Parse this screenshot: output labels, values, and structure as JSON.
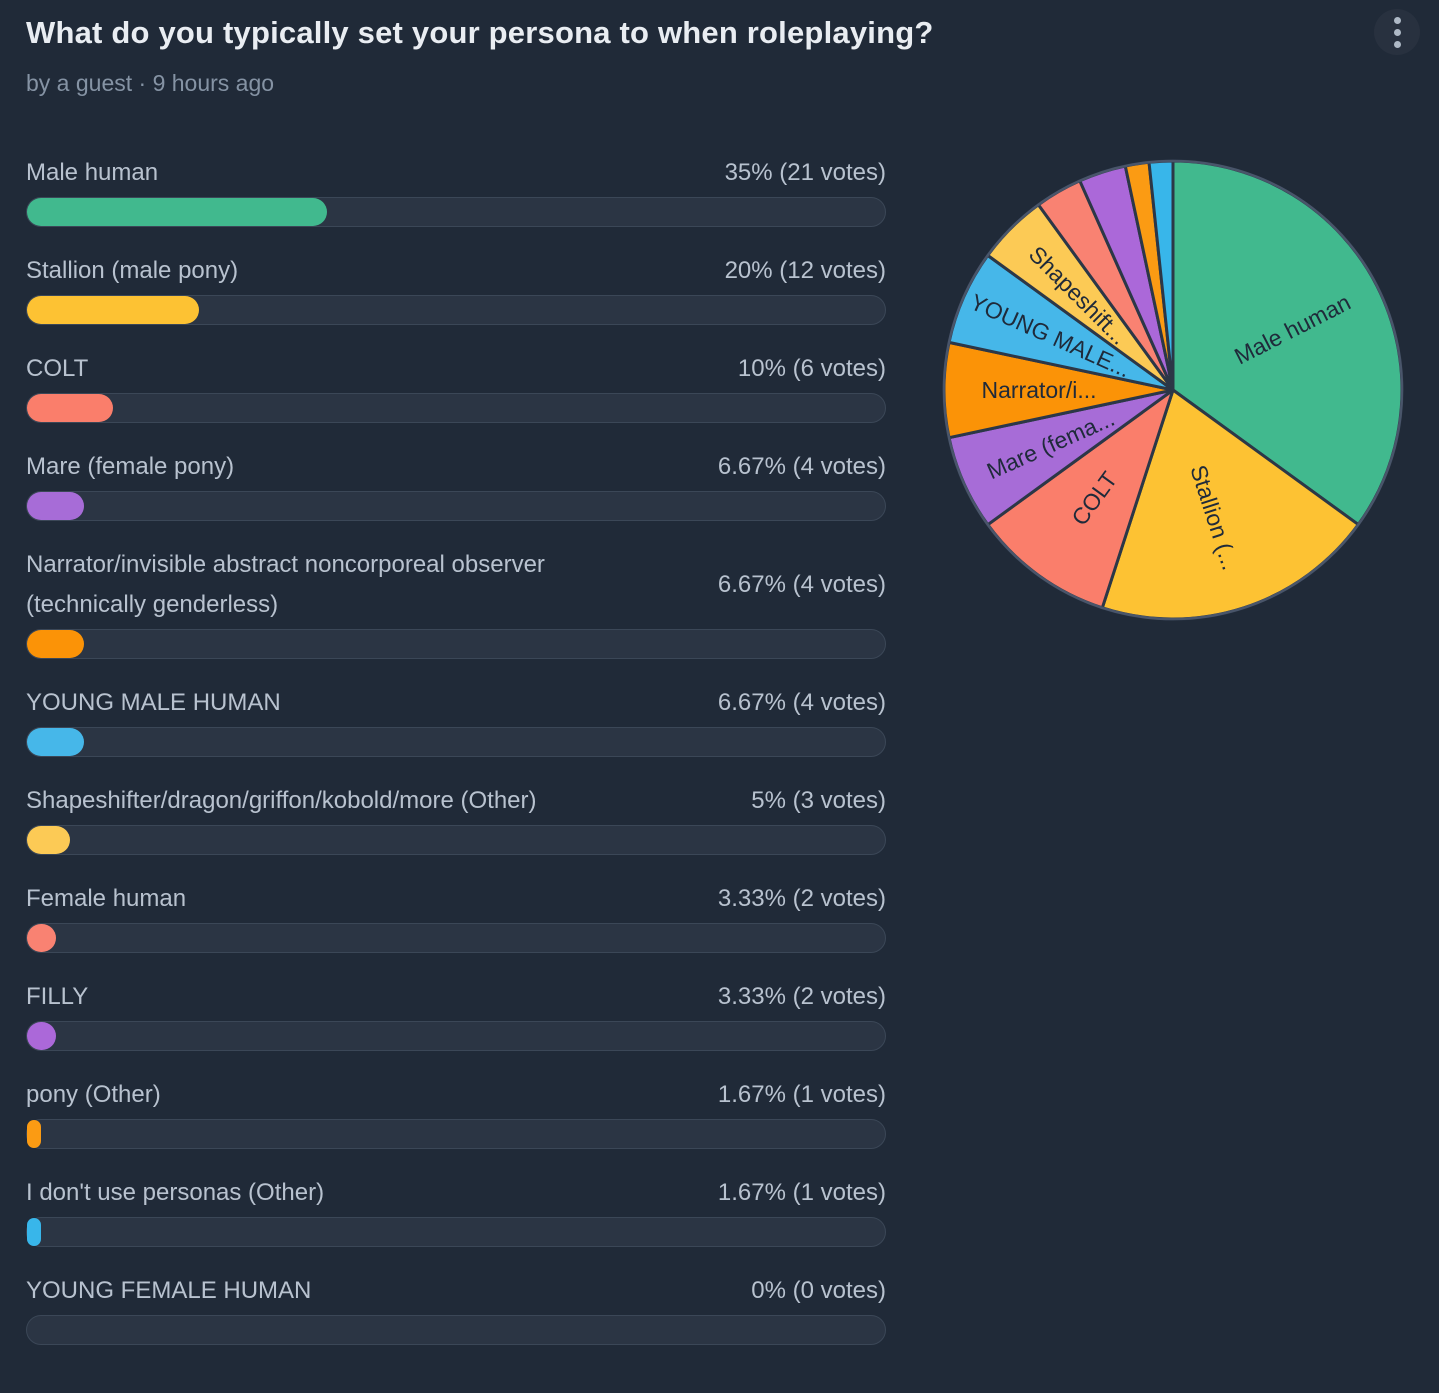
{
  "header": {
    "title": "What do you typically set your persona to when roleplaying?",
    "byline": "by a guest · 9 hours ago"
  },
  "colors": {
    "background": "#202a38",
    "track": "#2b3544",
    "track_border": "#3b4757",
    "label_text": "#b8c2cf",
    "title_text": "#e9edf2",
    "byline_text": "#8593a4",
    "pie_label_text": "#1f2a3a",
    "slice_stroke": "#2c3747"
  },
  "chart_data": {
    "type": "pie",
    "title": "What do you typically set your persona to when roleplaying?",
    "legend_position": "none",
    "layout": {
      "bar_list": "left",
      "pie": "right",
      "pie_start": "top",
      "pie_direction": "clockwise"
    },
    "slices": [
      {
        "label": "Male human",
        "pct": 35,
        "votes": 21,
        "result": "35% (21 votes)",
        "color": "#41b98e",
        "pie_label": "Male human"
      },
      {
        "label": "Stallion (male pony)",
        "pct": 20,
        "votes": 12,
        "result": "20% (12 votes)",
        "color": "#fdc233",
        "pie_label": "Stallion (..."
      },
      {
        "label": "COLT",
        "pct": 10,
        "votes": 6,
        "result": "10% (6 votes)",
        "color": "#fa7e6b",
        "pie_label": "COLT"
      },
      {
        "label": "Mare (female pony)",
        "pct": 6.67,
        "votes": 4,
        "result": "6.67% (4 votes)",
        "color": "#a76cd7",
        "pie_label": "Mare (fema..."
      },
      {
        "label": "Narrator/invisible abstract noncorporeal observer (technically genderless)",
        "pct": 6.67,
        "votes": 4,
        "result": "6.67% (4 votes)",
        "color": "#fb9307",
        "pie_label": "Narrator/i..."
      },
      {
        "label": "YOUNG MALE HUMAN",
        "pct": 6.67,
        "votes": 4,
        "result": "6.67% (4 votes)",
        "color": "#46b7e9",
        "pie_label": "YOUNG MALE..."
      },
      {
        "label": "Shapeshifter/dragon/griffon/kobold/more (Other)",
        "pct": 5,
        "votes": 3,
        "result": "5% (3 votes)",
        "color": "#fcca55",
        "pie_label": "Shapeshift..."
      },
      {
        "label": "Female human",
        "pct": 3.33,
        "votes": 2,
        "result": "3.33% (2 votes)",
        "color": "#f98272",
        "pie_label": ""
      },
      {
        "label": "FILLY",
        "pct": 3.33,
        "votes": 2,
        "result": "3.33% (2 votes)",
        "color": "#ab68d9",
        "pie_label": ""
      },
      {
        "label": "pony (Other)",
        "pct": 1.67,
        "votes": 1,
        "result": "1.67% (1 votes)",
        "color": "#fb9b13",
        "pie_label": ""
      },
      {
        "label": "I don't use personas (Other)",
        "pct": 1.67,
        "votes": 1,
        "result": "1.67% (1 votes)",
        "color": "#38b6ea",
        "pie_label": ""
      },
      {
        "label": "YOUNG FEMALE HUMAN",
        "pct": 0,
        "votes": 0,
        "result": "0% (0 votes)",
        "color": "",
        "pie_label": ""
      }
    ]
  }
}
